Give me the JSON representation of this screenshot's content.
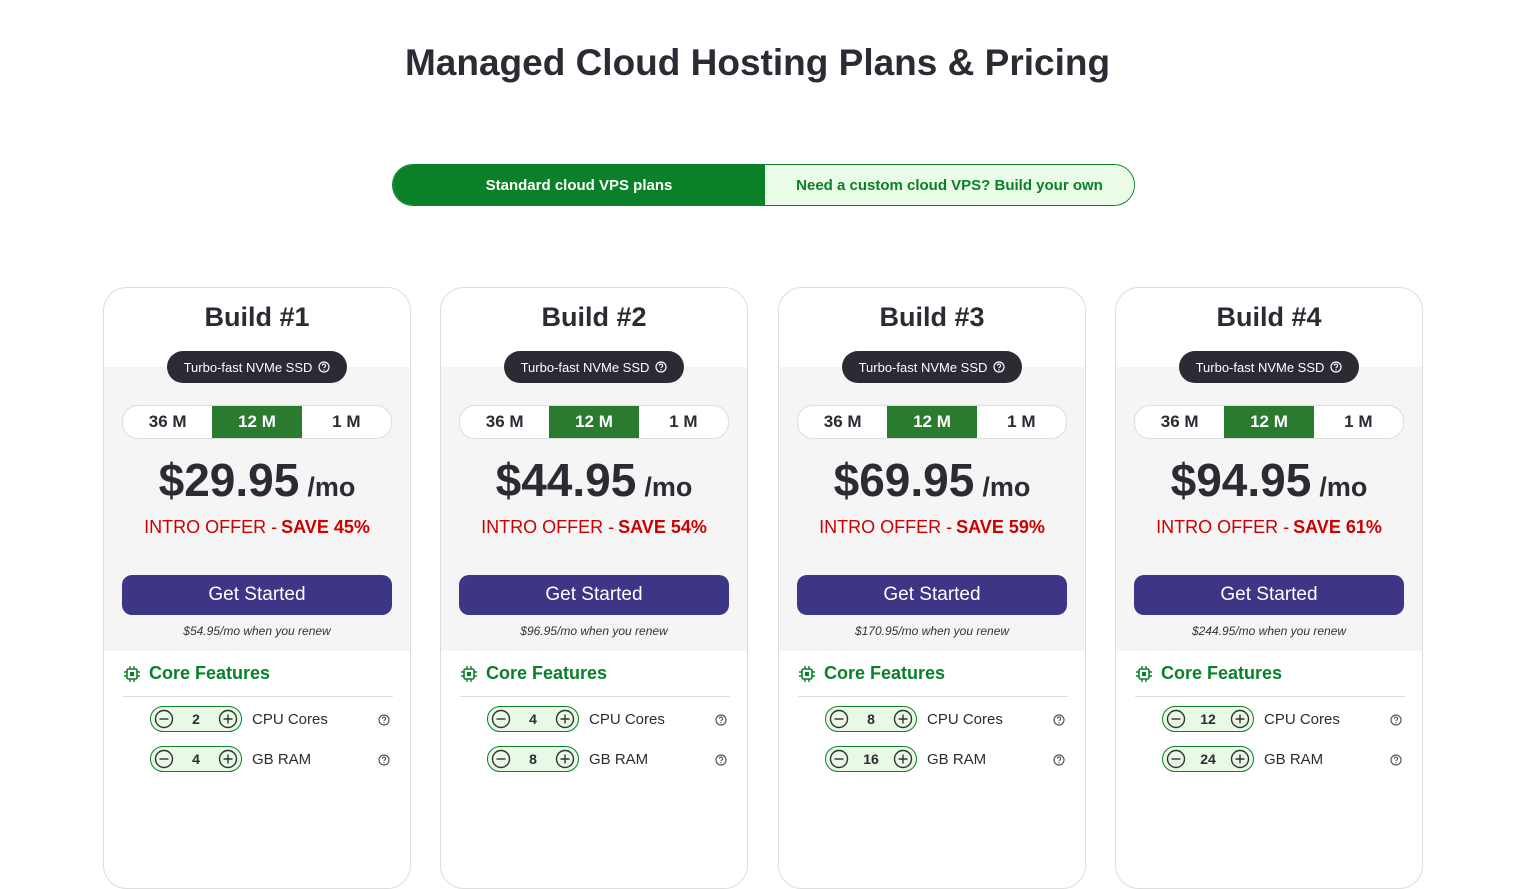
{
  "header": {
    "title": "Managed Cloud Hosting Plans & Pricing"
  },
  "tabs": [
    "Standard cloud VPS plans",
    "Need a custom cloud VPS? Build your own"
  ],
  "plans": [
    {
      "name": "Build #1",
      "badge": "Turbo-fast NVMe SSD",
      "terms": [
        "36 M",
        "12 M",
        "1 M"
      ],
      "price": "$29.95",
      "period": "/mo",
      "offer": "INTRO OFFER -",
      "save": "SAVE 45%",
      "button": "Get Started",
      "renew": "$54.95/mo when you renew",
      "features_title": "Core Features",
      "features": [
        {
          "value": "2",
          "label": "CPU Cores"
        },
        {
          "value": "4",
          "label": "GB RAM"
        }
      ]
    },
    {
      "name": "Build #2",
      "badge": "Turbo-fast NVMe SSD",
      "terms": [
        "36 M",
        "12 M",
        "1 M"
      ],
      "price": "$44.95",
      "period": "/mo",
      "offer": "INTRO OFFER -",
      "save": "SAVE 54%",
      "button": "Get Started",
      "renew": "$96.95/mo when you renew",
      "features_title": "Core Features",
      "features": [
        {
          "value": "4",
          "label": "CPU Cores"
        },
        {
          "value": "8",
          "label": "GB RAM"
        }
      ]
    },
    {
      "name": "Build #3",
      "badge": "Turbo-fast NVMe SSD",
      "terms": [
        "36 M",
        "12 M",
        "1 M"
      ],
      "price": "$69.95",
      "period": "/mo",
      "offer": "INTRO OFFER -",
      "save": "SAVE 59%",
      "button": "Get Started",
      "renew": "$170.95/mo when you renew",
      "features_title": "Core Features",
      "features": [
        {
          "value": "8",
          "label": "CPU Cores"
        },
        {
          "value": "16",
          "label": "GB RAM"
        }
      ]
    },
    {
      "name": "Build #4",
      "badge": "Turbo-fast NVMe SSD",
      "terms": [
        "36 M",
        "12 M",
        "1 M"
      ],
      "price": "$94.95",
      "period": "/mo",
      "offer": "INTRO OFFER -",
      "save": "SAVE 61%",
      "button": "Get Started",
      "renew": "$244.95/mo when you renew",
      "features_title": "Core Features",
      "features": [
        {
          "value": "12",
          "label": "CPU Cores"
        },
        {
          "value": "24",
          "label": "GB RAM"
        }
      ]
    }
  ]
}
